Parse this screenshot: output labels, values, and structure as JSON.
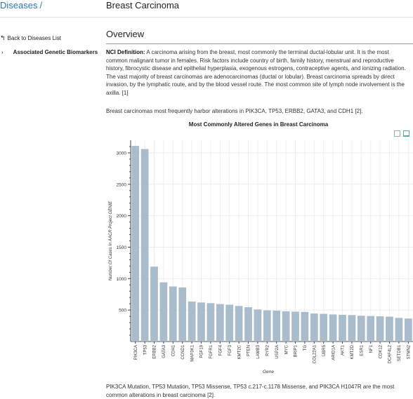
{
  "breadcrumb": {
    "parent": "Diseases",
    "separator": "/"
  },
  "page_title": "Breast Carcinoma",
  "sidebar": {
    "back_label": "Back to Diseases List",
    "section_label": "Associated Genetic Biomarkers"
  },
  "overview": {
    "heading": "Overview",
    "nci_label": "NCI Definition:",
    "nci_text": " A carcinoma arising from the breast, most commonly the terminal ductal-lobular unit. It is the most common malignant tumor in females. Risk factors include country of birth, family history, menstrual and reproductive history, fibrocystic disease and epithelial hyperplasia, exogenous estrogens, contraceptive agents, and ionizing radiation. The vast majority of breast carcinomas are adenocarcinomas (ductal or lobular). Breast carcinoma spreads by direct invasion, by the lymphatic route, and by the blood vessel route. The most common site of lymph node involvement is the axilla. [1]",
    "genes_text": "Breast carcinomas most frequently harbor alterations in PIK3CA, TP53, ERBB2, GATA3, and CDH1 [2].",
    "mutations_text": "PIK3CA Mutation, TP53 Mutation, TP53 Missense, TP53 c.217-c.1178 Missense, and PIK3CA H1047R are the most common alterations in breast carcinoma [2]."
  },
  "colors": {
    "bar": "#a9bccb",
    "link": "#2a7ab0",
    "grid": "#eeeeee"
  },
  "chart_data": {
    "type": "bar",
    "title": "Most Commonly Altered Genes in Breast Carcinoma",
    "xlabel": "Gene",
    "ylabel": "Number Of Cases In AACR Project GENIE",
    "ylim": [
      0,
      3200
    ],
    "yticks": [
      500,
      1000,
      1500,
      2000,
      2500,
      3000
    ],
    "grid": true,
    "categories": [
      "PIK3CA",
      "TP53",
      "ERBB2",
      "GATA3",
      "CDH1",
      "CCND1",
      "MAP3K1",
      "FGF19",
      "FGFR1",
      "FGF4",
      "FGF3",
      "KMT2C",
      "PTEN",
      "LAMB3",
      "RYR2",
      "USP2A",
      "MYC",
      "BRIP1",
      "TG",
      "COL22A1",
      "UBR5",
      "ARID1A",
      "AKT1",
      "KMT2D",
      "ESR1",
      "NF1",
      "CDK12",
      "DCAF4L2",
      "SETDB1",
      "STMN2"
    ],
    "values": [
      3110,
      3060,
      1190,
      940,
      875,
      860,
      635,
      620,
      610,
      595,
      585,
      565,
      545,
      510,
      495,
      490,
      480,
      475,
      470,
      445,
      440,
      430,
      425,
      420,
      410,
      405,
      400,
      395,
      375,
      365
    ]
  }
}
